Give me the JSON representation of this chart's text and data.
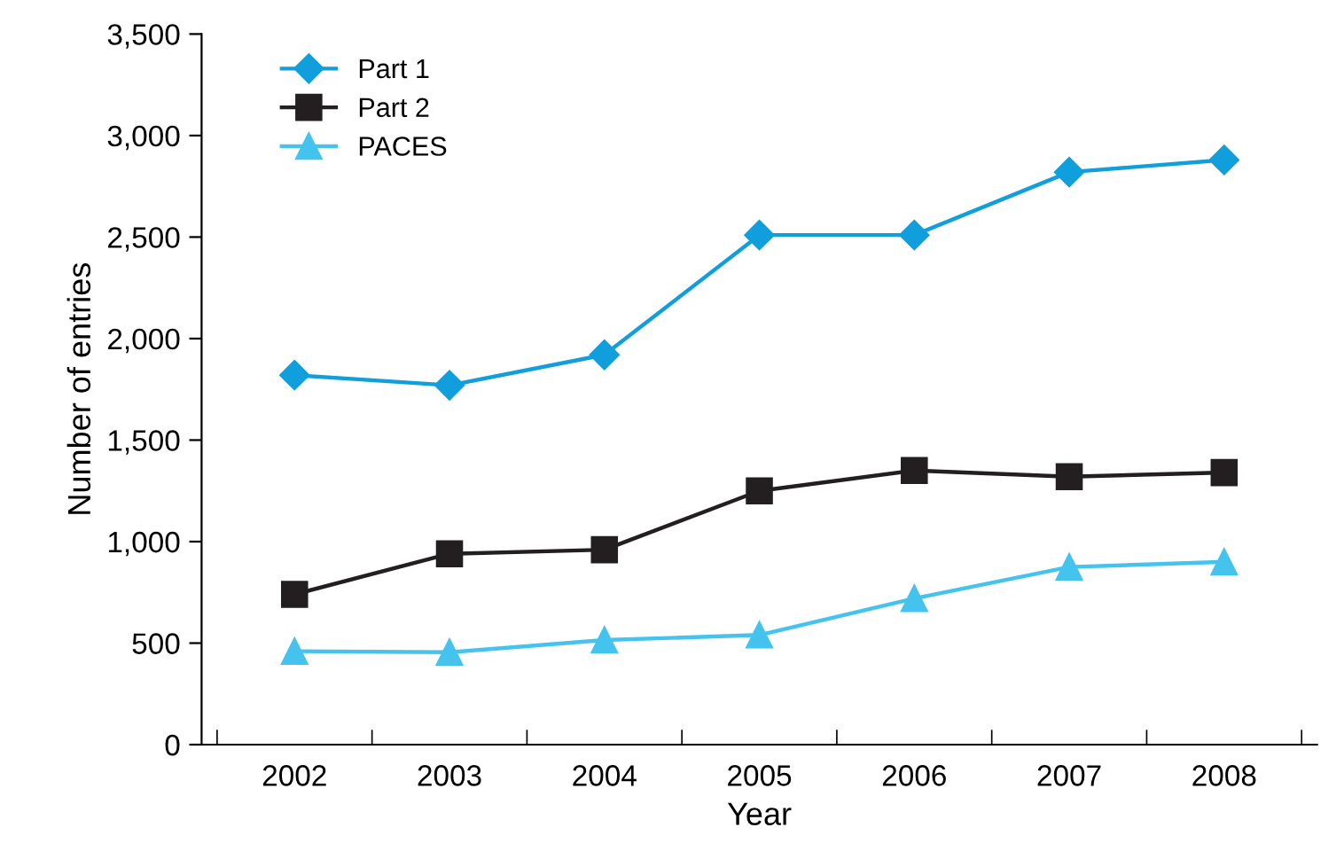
{
  "chart_data": {
    "type": "line",
    "xlabel": "Year",
    "ylabel": "Number of entries",
    "categories": [
      "2002",
      "2003",
      "2004",
      "2005",
      "2006",
      "2007",
      "2008"
    ],
    "series": [
      {
        "name": "Part 1",
        "color": "#109fdc",
        "marker": "diamond",
        "values": [
          1820,
          1770,
          1920,
          2510,
          2510,
          2820,
          2880
        ]
      },
      {
        "name": "Part 2",
        "color": "#231f20",
        "marker": "square",
        "values": [
          740,
          940,
          960,
          1250,
          1350,
          1320,
          1340
        ]
      },
      {
        "name": "PACES",
        "color": "#45c3ef",
        "marker": "triangle",
        "values": [
          460,
          455,
          515,
          540,
          720,
          875,
          900
        ]
      }
    ],
    "ylim": [
      0,
      3500
    ],
    "yticks": [
      {
        "value": 0,
        "label": "0"
      },
      {
        "value": 500,
        "label": "500"
      },
      {
        "value": 1000,
        "label": "1,000"
      },
      {
        "value": 1500,
        "label": "1,500"
      },
      {
        "value": 2000,
        "label": "2,000"
      },
      {
        "value": 2500,
        "label": "2,500"
      },
      {
        "value": 3000,
        "label": "3,000"
      },
      {
        "value": 3500,
        "label": "3,500"
      }
    ],
    "legend": "top left",
    "grid": false
  }
}
